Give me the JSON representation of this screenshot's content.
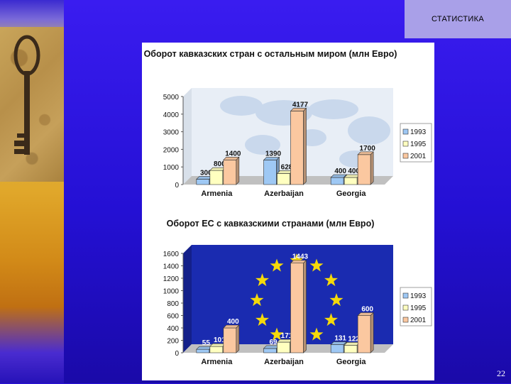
{
  "slide": {
    "header_label": "СТАТИСТИКА",
    "page_number": "22"
  },
  "chart_data": [
    {
      "type": "bar",
      "title": "Оборот кавказских стран с остальным миром (млн Евро)",
      "categories": [
        "Armenia",
        "Azerbaijan",
        "Georgia"
      ],
      "series": [
        {
          "name": "1993",
          "values": [
            300,
            1390,
            400
          ],
          "labels": [
            "300",
            "1390",
            "400"
          ],
          "color": "#9ec8f4"
        },
        {
          "name": "1995",
          "values": [
            800,
            628,
            400
          ],
          "labels": [
            "800",
            "628",
            "400"
          ],
          "color": "#ffffc0"
        },
        {
          "name": "2001",
          "values": [
            1400,
            4177,
            1700
          ],
          "labels": [
            "1400",
            "4177",
            "1700"
          ],
          "color": "#fbc8a0"
        }
      ],
      "yticks": [
        "0",
        "1000",
        "2000",
        "3000",
        "4000",
        "5000"
      ],
      "ylim": [
        0,
        5000
      ],
      "legend": "right",
      "background": "world-map"
    },
    {
      "type": "bar",
      "title": "Оборот ЕС с кавказскими странами (млн Евро)",
      "categories": [
        "Armenia",
        "Azerbaijan",
        "Georgia"
      ],
      "series": [
        {
          "name": "1993",
          "values": [
            55,
            69,
            131
          ],
          "labels": [
            "55",
            "69",
            "131"
          ],
          "color": "#9ec8f4"
        },
        {
          "name": "1995",
          "values": [
            101,
            171,
            122
          ],
          "labels": [
            "101",
            "171",
            "122"
          ],
          "color": "#ffffc0"
        },
        {
          "name": "2001",
          "values": [
            400,
            1443,
            600
          ],
          "labels": [
            "400",
            "1443",
            "600"
          ],
          "color": "#fbc8a0"
        }
      ],
      "yticks": [
        "0",
        "200",
        "400",
        "600",
        "800",
        "1000",
        "1200",
        "1400",
        "1600"
      ],
      "ylim": [
        0,
        1600
      ],
      "legend": "right",
      "background": "eu-flag"
    }
  ]
}
